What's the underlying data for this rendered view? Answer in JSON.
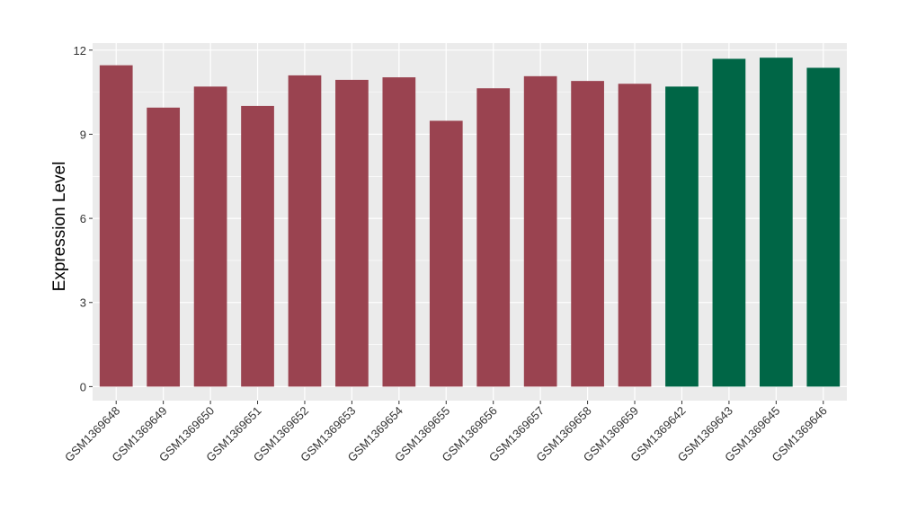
{
  "chart_data": {
    "type": "bar",
    "title": "",
    "xlabel": "",
    "ylabel": "Expression Level",
    "ylim": [
      -0.5,
      12.25
    ],
    "yticks": [
      0,
      3,
      6,
      9,
      12
    ],
    "grid": true,
    "legend": "none",
    "categories": [
      "GSM1369648",
      "GSM1369649",
      "GSM1369650",
      "GSM1369651",
      "GSM1369652",
      "GSM1369653",
      "GSM1369654",
      "GSM1369655",
      "GSM1369656",
      "GSM1369657",
      "GSM1369658",
      "GSM1369659",
      "GSM1369642",
      "GSM1369643",
      "GSM1369645",
      "GSM1369646"
    ],
    "values": [
      11.46,
      9.95,
      10.7,
      10.01,
      11.1,
      10.94,
      11.03,
      9.48,
      10.64,
      11.07,
      10.9,
      10.8,
      10.7,
      11.69,
      11.73,
      11.37
    ],
    "groups": [
      "a",
      "a",
      "a",
      "a",
      "a",
      "a",
      "a",
      "a",
      "a",
      "a",
      "a",
      "a",
      "b",
      "b",
      "b",
      "b"
    ],
    "colors": {
      "a": "#9a4350",
      "b": "#006646"
    },
    "panel_background": "#ebebeb"
  }
}
